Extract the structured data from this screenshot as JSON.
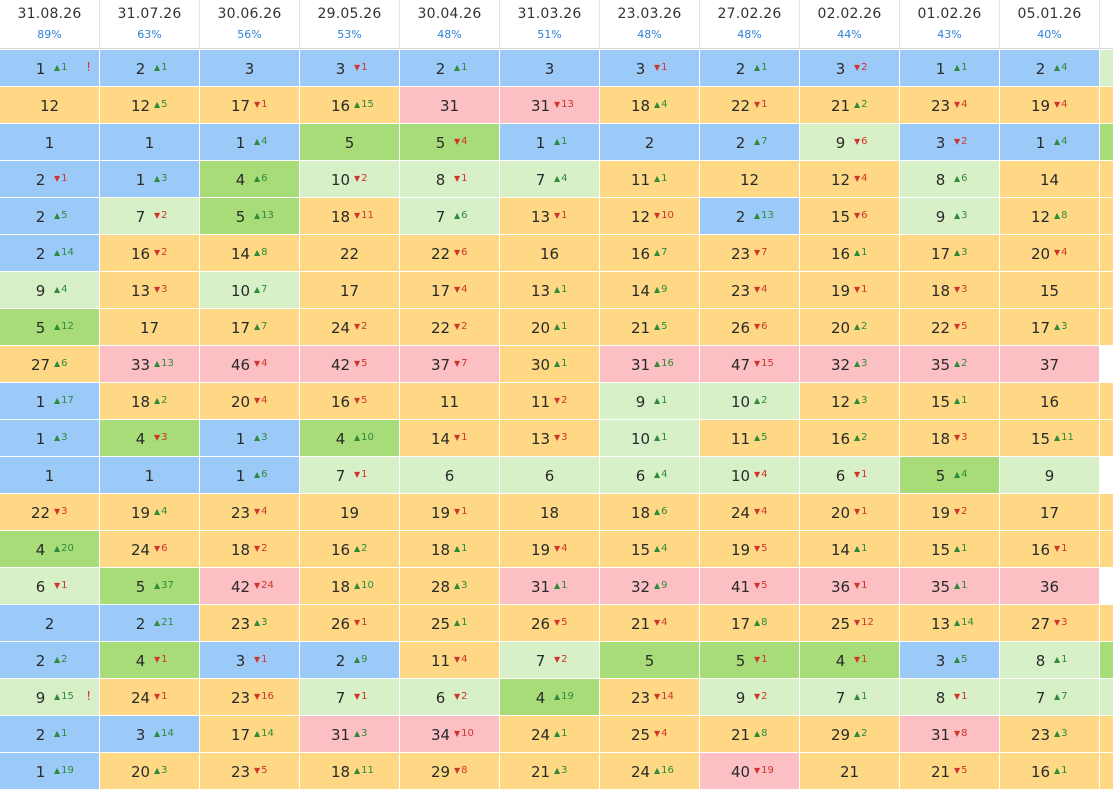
{
  "columns": [
    {
      "date": "31.08.26",
      "pct": "89%"
    },
    {
      "date": "31.07.26",
      "pct": "63%"
    },
    {
      "date": "30.06.26",
      "pct": "56%"
    },
    {
      "date": "29.05.26",
      "pct": "53%"
    },
    {
      "date": "30.04.26",
      "pct": "48%"
    },
    {
      "date": "31.03.26",
      "pct": "51%"
    },
    {
      "date": "23.03.26",
      "pct": "48%"
    },
    {
      "date": "27.02.26",
      "pct": "48%"
    },
    {
      "date": "02.02.26",
      "pct": "44%"
    },
    {
      "date": "01.02.26",
      "pct": "43%"
    },
    {
      "date": "05.01.26",
      "pct": "40%"
    }
  ],
  "colors": {
    "blue": "#9ccaf8",
    "yellow": "#fed884",
    "pink": "#fcc0c4",
    "lgreen": "#d8f0c8",
    "green": "#a8dc78",
    "white": "#ffffff",
    "up": "#2e8b3a",
    "down": "#d0342c",
    "header_pct": "#2f7fd8"
  },
  "rows": [
    [
      [
        "1",
        "u1",
        "blue",
        "!"
      ],
      [
        "2",
        "u1",
        "blue"
      ],
      [
        "3",
        "",
        "blue"
      ],
      [
        "3",
        "d1",
        "blue"
      ],
      [
        "2",
        "u1",
        "blue"
      ],
      [
        "3",
        "",
        "blue"
      ],
      [
        "3",
        "d1",
        "blue"
      ],
      [
        "2",
        "u1",
        "blue"
      ],
      [
        "3",
        "d2",
        "blue"
      ],
      [
        "1",
        "u1",
        "blue"
      ],
      [
        "2",
        "u4",
        "blue"
      ],
      [
        "",
        "",
        "lgreen"
      ]
    ],
    [
      [
        "12",
        "",
        "yellow"
      ],
      [
        "12",
        "u5",
        "yellow"
      ],
      [
        "17",
        "d1",
        "yellow"
      ],
      [
        "16",
        "u15",
        "yellow"
      ],
      [
        "31",
        "",
        "pink"
      ],
      [
        "31",
        "d13",
        "pink"
      ],
      [
        "18",
        "u4",
        "yellow"
      ],
      [
        "22",
        "d1",
        "yellow"
      ],
      [
        "21",
        "u2",
        "yellow"
      ],
      [
        "23",
        "d4",
        "yellow"
      ],
      [
        "19",
        "d4",
        "yellow"
      ],
      [
        "",
        "",
        "yellow"
      ]
    ],
    [
      [
        "1",
        "",
        "blue"
      ],
      [
        "1",
        "",
        "blue"
      ],
      [
        "1",
        "u4",
        "blue"
      ],
      [
        "5",
        "",
        "green"
      ],
      [
        "5",
        "d4",
        "green"
      ],
      [
        "1",
        "u1",
        "blue"
      ],
      [
        "2",
        "",
        "blue"
      ],
      [
        "2",
        "u7",
        "blue"
      ],
      [
        "9",
        "d6",
        "lgreen"
      ],
      [
        "3",
        "d2",
        "blue"
      ],
      [
        "1",
        "u4",
        "blue"
      ],
      [
        "",
        "",
        "green"
      ]
    ],
    [
      [
        "2",
        "d1",
        "blue"
      ],
      [
        "1",
        "u3",
        "blue"
      ],
      [
        "4",
        "u6",
        "green"
      ],
      [
        "10",
        "d2",
        "lgreen"
      ],
      [
        "8",
        "d1",
        "lgreen"
      ],
      [
        "7",
        "u4",
        "lgreen"
      ],
      [
        "11",
        "u1",
        "yellow"
      ],
      [
        "12",
        "",
        "yellow"
      ],
      [
        "12",
        "d4",
        "yellow"
      ],
      [
        "8",
        "u6",
        "lgreen"
      ],
      [
        "14",
        "",
        "yellow"
      ],
      [
        "",
        "",
        "yellow"
      ]
    ],
    [
      [
        "2",
        "u5",
        "blue"
      ],
      [
        "7",
        "d2",
        "lgreen"
      ],
      [
        "5",
        "u13",
        "green"
      ],
      [
        "18",
        "d11",
        "yellow"
      ],
      [
        "7",
        "u6",
        "lgreen"
      ],
      [
        "13",
        "d1",
        "yellow"
      ],
      [
        "12",
        "d10",
        "yellow"
      ],
      [
        "2",
        "u13",
        "blue"
      ],
      [
        "15",
        "d6",
        "yellow"
      ],
      [
        "9",
        "u3",
        "lgreen"
      ],
      [
        "12",
        "u8",
        "yellow"
      ],
      [
        "",
        "",
        "yellow"
      ]
    ],
    [
      [
        "2",
        "u14",
        "blue"
      ],
      [
        "16",
        "d2",
        "yellow"
      ],
      [
        "14",
        "u8",
        "yellow"
      ],
      [
        "22",
        "",
        "yellow"
      ],
      [
        "22",
        "d6",
        "yellow"
      ],
      [
        "16",
        "",
        "yellow"
      ],
      [
        "16",
        "u7",
        "yellow"
      ],
      [
        "23",
        "d7",
        "yellow"
      ],
      [
        "16",
        "u1",
        "yellow"
      ],
      [
        "17",
        "u3",
        "yellow"
      ],
      [
        "20",
        "d4",
        "yellow"
      ],
      [
        "",
        "",
        "yellow"
      ]
    ],
    [
      [
        "9",
        "u4",
        "lgreen"
      ],
      [
        "13",
        "d3",
        "yellow"
      ],
      [
        "10",
        "u7",
        "lgreen"
      ],
      [
        "17",
        "",
        "yellow"
      ],
      [
        "17",
        "d4",
        "yellow"
      ],
      [
        "13",
        "u1",
        "yellow"
      ],
      [
        "14",
        "u9",
        "yellow"
      ],
      [
        "23",
        "d4",
        "yellow"
      ],
      [
        "19",
        "d1",
        "yellow"
      ],
      [
        "18",
        "d3",
        "yellow"
      ],
      [
        "15",
        "",
        "yellow"
      ],
      [
        "",
        "",
        "yellow"
      ]
    ],
    [
      [
        "5",
        "u12",
        "green"
      ],
      [
        "17",
        "",
        "yellow"
      ],
      [
        "17",
        "u7",
        "yellow"
      ],
      [
        "24",
        "d2",
        "yellow"
      ],
      [
        "22",
        "d2",
        "yellow"
      ],
      [
        "20",
        "u1",
        "yellow"
      ],
      [
        "21",
        "u5",
        "yellow"
      ],
      [
        "26",
        "d6",
        "yellow"
      ],
      [
        "20",
        "u2",
        "yellow"
      ],
      [
        "22",
        "d5",
        "yellow"
      ],
      [
        "17",
        "u3",
        "yellow"
      ],
      [
        "",
        "",
        "yellow"
      ]
    ],
    [
      [
        "27",
        "u6",
        "yellow"
      ],
      [
        "33",
        "u13",
        "pink"
      ],
      [
        "46",
        "d4",
        "pink"
      ],
      [
        "42",
        "d5",
        "pink"
      ],
      [
        "37",
        "d7",
        "pink"
      ],
      [
        "30",
        "u1",
        "yellow"
      ],
      [
        "31",
        "u16",
        "pink"
      ],
      [
        "47",
        "d15",
        "pink"
      ],
      [
        "32",
        "u3",
        "pink"
      ],
      [
        "35",
        "u2",
        "pink"
      ],
      [
        "37",
        "",
        "pink"
      ],
      [
        "",
        "",
        "white"
      ]
    ],
    [
      [
        "1",
        "u17",
        "blue"
      ],
      [
        "18",
        "u2",
        "yellow"
      ],
      [
        "20",
        "d4",
        "yellow"
      ],
      [
        "16",
        "d5",
        "yellow"
      ],
      [
        "11",
        "",
        "yellow"
      ],
      [
        "11",
        "d2",
        "yellow"
      ],
      [
        "9",
        "u1",
        "lgreen"
      ],
      [
        "10",
        "u2",
        "lgreen"
      ],
      [
        "12",
        "u3",
        "yellow"
      ],
      [
        "15",
        "u1",
        "yellow"
      ],
      [
        "16",
        "",
        "yellow"
      ],
      [
        "",
        "",
        "yellow"
      ]
    ],
    [
      [
        "1",
        "u3",
        "blue"
      ],
      [
        "4",
        "d3",
        "green"
      ],
      [
        "1",
        "u3",
        "blue"
      ],
      [
        "4",
        "u10",
        "green"
      ],
      [
        "14",
        "d1",
        "yellow"
      ],
      [
        "13",
        "d3",
        "yellow"
      ],
      [
        "10",
        "u1",
        "lgreen"
      ],
      [
        "11",
        "u5",
        "yellow"
      ],
      [
        "16",
        "u2",
        "yellow"
      ],
      [
        "18",
        "d3",
        "yellow"
      ],
      [
        "15",
        "u11",
        "yellow"
      ],
      [
        "",
        "",
        "yellow"
      ]
    ],
    [
      [
        "1",
        "",
        "blue"
      ],
      [
        "1",
        "",
        "blue"
      ],
      [
        "1",
        "u6",
        "blue"
      ],
      [
        "7",
        "d1",
        "lgreen"
      ],
      [
        "6",
        "",
        "lgreen"
      ],
      [
        "6",
        "",
        "lgreen"
      ],
      [
        "6",
        "u4",
        "lgreen"
      ],
      [
        "10",
        "d4",
        "lgreen"
      ],
      [
        "6",
        "d1",
        "lgreen"
      ],
      [
        "5",
        "u4",
        "green"
      ],
      [
        "9",
        "",
        "lgreen"
      ],
      [
        "",
        "",
        "white"
      ]
    ],
    [
      [
        "22",
        "d3",
        "yellow"
      ],
      [
        "19",
        "u4",
        "yellow"
      ],
      [
        "23",
        "d4",
        "yellow"
      ],
      [
        "19",
        "",
        "yellow"
      ],
      [
        "19",
        "d1",
        "yellow"
      ],
      [
        "18",
        "",
        "yellow"
      ],
      [
        "18",
        "u6",
        "yellow"
      ],
      [
        "24",
        "d4",
        "yellow"
      ],
      [
        "20",
        "d1",
        "yellow"
      ],
      [
        "19",
        "d2",
        "yellow"
      ],
      [
        "17",
        "",
        "yellow"
      ],
      [
        "",
        "",
        "yellow"
      ]
    ],
    [
      [
        "4",
        "u20",
        "green"
      ],
      [
        "24",
        "d6",
        "yellow"
      ],
      [
        "18",
        "d2",
        "yellow"
      ],
      [
        "16",
        "u2",
        "yellow"
      ],
      [
        "18",
        "u1",
        "yellow"
      ],
      [
        "19",
        "d4",
        "yellow"
      ],
      [
        "15",
        "u4",
        "yellow"
      ],
      [
        "19",
        "d5",
        "yellow"
      ],
      [
        "14",
        "u1",
        "yellow"
      ],
      [
        "15",
        "u1",
        "yellow"
      ],
      [
        "16",
        "d1",
        "yellow"
      ],
      [
        "",
        "",
        "yellow"
      ]
    ],
    [
      [
        "6",
        "d1",
        "lgreen"
      ],
      [
        "5",
        "u37",
        "green"
      ],
      [
        "42",
        "d24",
        "pink"
      ],
      [
        "18",
        "u10",
        "yellow"
      ],
      [
        "28",
        "u3",
        "yellow"
      ],
      [
        "31",
        "u1",
        "pink"
      ],
      [
        "32",
        "u9",
        "pink"
      ],
      [
        "41",
        "d5",
        "pink"
      ],
      [
        "36",
        "d1",
        "pink"
      ],
      [
        "35",
        "u1",
        "pink"
      ],
      [
        "36",
        "",
        "pink"
      ],
      [
        "",
        "",
        "white"
      ]
    ],
    [
      [
        "2",
        "",
        "blue"
      ],
      [
        "2",
        "u21",
        "blue"
      ],
      [
        "23",
        "u3",
        "yellow"
      ],
      [
        "26",
        "d1",
        "yellow"
      ],
      [
        "25",
        "u1",
        "yellow"
      ],
      [
        "26",
        "d5",
        "yellow"
      ],
      [
        "21",
        "d4",
        "yellow"
      ],
      [
        "17",
        "u8",
        "yellow"
      ],
      [
        "25",
        "d12",
        "yellow"
      ],
      [
        "13",
        "u14",
        "yellow"
      ],
      [
        "27",
        "d3",
        "yellow"
      ],
      [
        "",
        "",
        "yellow"
      ]
    ],
    [
      [
        "2",
        "u2",
        "blue"
      ],
      [
        "4",
        "d1",
        "green"
      ],
      [
        "3",
        "d1",
        "blue"
      ],
      [
        "2",
        "u9",
        "blue"
      ],
      [
        "11",
        "d4",
        "yellow"
      ],
      [
        "7",
        "d2",
        "lgreen"
      ],
      [
        "5",
        "",
        "green"
      ],
      [
        "5",
        "d1",
        "green"
      ],
      [
        "4",
        "d1",
        "green"
      ],
      [
        "3",
        "u5",
        "blue"
      ],
      [
        "8",
        "u1",
        "lgreen"
      ],
      [
        "",
        "",
        "green"
      ]
    ],
    [
      [
        "9",
        "u15",
        "lgreen",
        "!"
      ],
      [
        "24",
        "d1",
        "yellow"
      ],
      [
        "23",
        "d16",
        "yellow"
      ],
      [
        "7",
        "d1",
        "lgreen"
      ],
      [
        "6",
        "d2",
        "lgreen"
      ],
      [
        "4",
        "u19",
        "green"
      ],
      [
        "23",
        "d14",
        "yellow"
      ],
      [
        "9",
        "d2",
        "lgreen"
      ],
      [
        "7",
        "u1",
        "lgreen"
      ],
      [
        "8",
        "d1",
        "lgreen"
      ],
      [
        "7",
        "u7",
        "lgreen"
      ],
      [
        "",
        "",
        "lgreen"
      ]
    ],
    [
      [
        "2",
        "u1",
        "blue"
      ],
      [
        "3",
        "u14",
        "blue"
      ],
      [
        "17",
        "u14",
        "yellow"
      ],
      [
        "31",
        "u3",
        "pink"
      ],
      [
        "34",
        "d10",
        "pink"
      ],
      [
        "24",
        "u1",
        "yellow"
      ],
      [
        "25",
        "d4",
        "yellow"
      ],
      [
        "21",
        "u8",
        "yellow"
      ],
      [
        "29",
        "u2",
        "yellow"
      ],
      [
        "31",
        "d8",
        "pink"
      ],
      [
        "23",
        "u3",
        "yellow"
      ],
      [
        "",
        "",
        "yellow"
      ]
    ],
    [
      [
        "1",
        "u19",
        "blue"
      ],
      [
        "20",
        "u3",
        "yellow"
      ],
      [
        "23",
        "d5",
        "yellow"
      ],
      [
        "18",
        "u11",
        "yellow"
      ],
      [
        "29",
        "d8",
        "yellow"
      ],
      [
        "21",
        "u3",
        "yellow"
      ],
      [
        "24",
        "u16",
        "yellow"
      ],
      [
        "40",
        "d19",
        "pink"
      ],
      [
        "21",
        "",
        "yellow"
      ],
      [
        "21",
        "d5",
        "yellow"
      ],
      [
        "16",
        "u1",
        "yellow"
      ],
      [
        "",
        "",
        "yellow"
      ]
    ]
  ]
}
